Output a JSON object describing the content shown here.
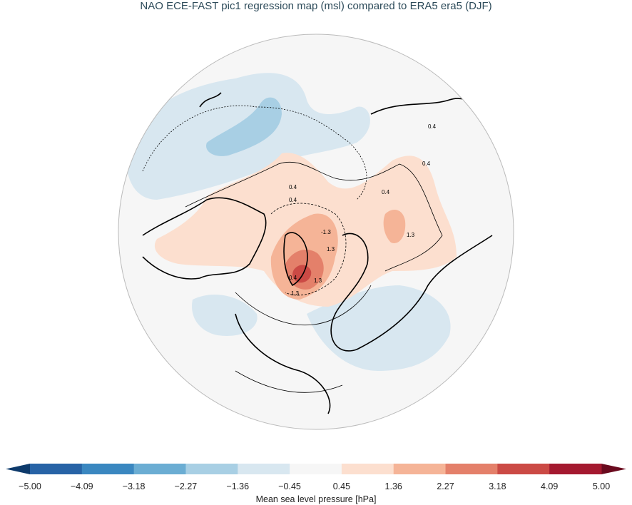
{
  "title": "NAO ECE-FAST pic1 regression map (msl) compared to ERA5 era5 (DJF)",
  "map": {
    "projection": "north-polar-stereographic",
    "field": "regression (msl), shaded",
    "reference_contours": "ERA5 era5, black lines",
    "contour_labels": [
      "0.4",
      "0.4",
      "0.4",
      "0.4",
      "-1.3",
      "1.3",
      "1.3",
      "1.3",
      "0.4",
      "1.3",
      "0.4"
    ]
  },
  "colorbar": {
    "label": "Mean sea level pressure [hPa]",
    "ticks": [
      "−5.00",
      "−4.09",
      "−3.18",
      "−2.27",
      "−1.36",
      "−0.45",
      "0.45",
      "1.36",
      "2.27",
      "3.18",
      "4.09",
      "5.00"
    ],
    "colors": [
      "#2763a6",
      "#3a87c0",
      "#6badd3",
      "#a8cfe4",
      "#d8e7f0",
      "#f6f6f6",
      "#fcdfcf",
      "#f5b497",
      "#e4806a",
      "#cb4a45",
      "#a4192f"
    ],
    "extend_low_color": "#0d3a6b",
    "extend_high_color": "#6a0a1e"
  }
}
